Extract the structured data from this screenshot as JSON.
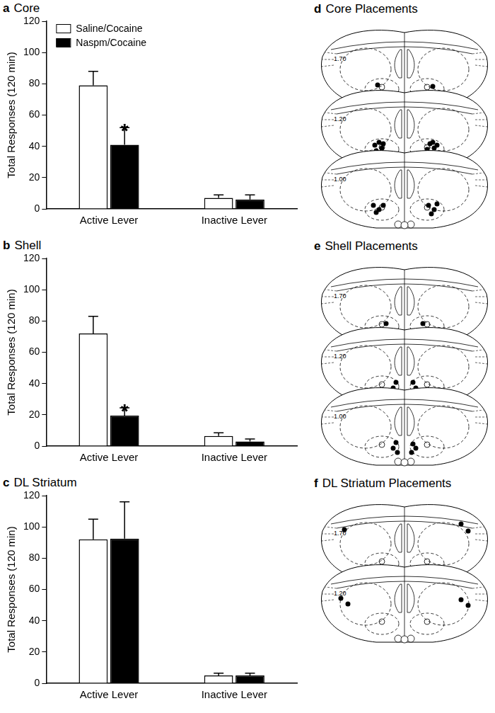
{
  "chart_data": [
    {
      "type": "bar",
      "panel": "a",
      "title": "Core",
      "categories": [
        "Active Lever",
        "Inactive Lever"
      ],
      "series": [
        {
          "name": "Saline/Cocaine",
          "color": "#ffffff",
          "values": [
            79,
            7
          ],
          "errors": [
            9,
            2
          ]
        },
        {
          "name": "Naspm/Cocaine",
          "color": "#000000",
          "values": [
            41,
            6
          ],
          "errors": [
            11,
            3
          ]
        }
      ],
      "ylim": [
        0,
        120
      ],
      "yticks": [
        0,
        20,
        40,
        60,
        80,
        100,
        120
      ],
      "y_label": "Total Responses (120 min)",
      "grid": false,
      "legend": "top-left",
      "annotations": [
        {
          "text": "*",
          "category": "Active Lever",
          "series": "Naspm/Cocaine"
        }
      ]
    },
    {
      "type": "bar",
      "panel": "b",
      "title": "Shell",
      "categories": [
        "Active Lever",
        "Inactive Lever"
      ],
      "series": [
        {
          "name": "Saline/Cocaine",
          "color": "#ffffff",
          "values": [
            72,
            6.5
          ],
          "errors": [
            11,
            2
          ]
        },
        {
          "name": "Naspm/Cocaine",
          "color": "#000000",
          "values": [
            19.5,
            3
          ],
          "errors": [
            5,
            1.5
          ]
        }
      ],
      "ylim": [
        0,
        120
      ],
      "yticks": [
        0,
        20,
        40,
        60,
        80,
        100,
        120
      ],
      "y_label": "Total Responses (120 min)",
      "grid": false,
      "annotations": [
        {
          "text": "*",
          "category": "Active Lever",
          "series": "Naspm/Cocaine"
        }
      ]
    },
    {
      "type": "bar",
      "panel": "c",
      "title": "DL Striatum",
      "categories": [
        "Active Lever",
        "Inactive Lever"
      ],
      "series": [
        {
          "name": "Saline/Cocaine",
          "color": "#ffffff",
          "values": [
            92,
            5
          ],
          "errors": [
            13,
            1.5
          ]
        },
        {
          "name": "Naspm/Cocaine",
          "color": "#000000",
          "values": [
            92.5,
            5
          ],
          "errors": [
            23.5,
            1.5
          ]
        }
      ],
      "ylim": [
        0,
        120
      ],
      "yticks": [
        0,
        20,
        40,
        60,
        80,
        100,
        120
      ],
      "y_label": "Total Responses (120 min)",
      "grid": false,
      "annotations": []
    }
  ],
  "placements": [
    {
      "panel": "d",
      "title": "Core Placements",
      "sections": [
        "1.70",
        "1.20",
        "1.00"
      ]
    },
    {
      "panel": "e",
      "title": "Shell Placements",
      "sections": [
        "1.70",
        "1.20",
        "1.00"
      ]
    },
    {
      "panel": "f",
      "title": "DL Striatum Placements",
      "sections": [
        "1.70",
        "1.20"
      ]
    }
  ]
}
